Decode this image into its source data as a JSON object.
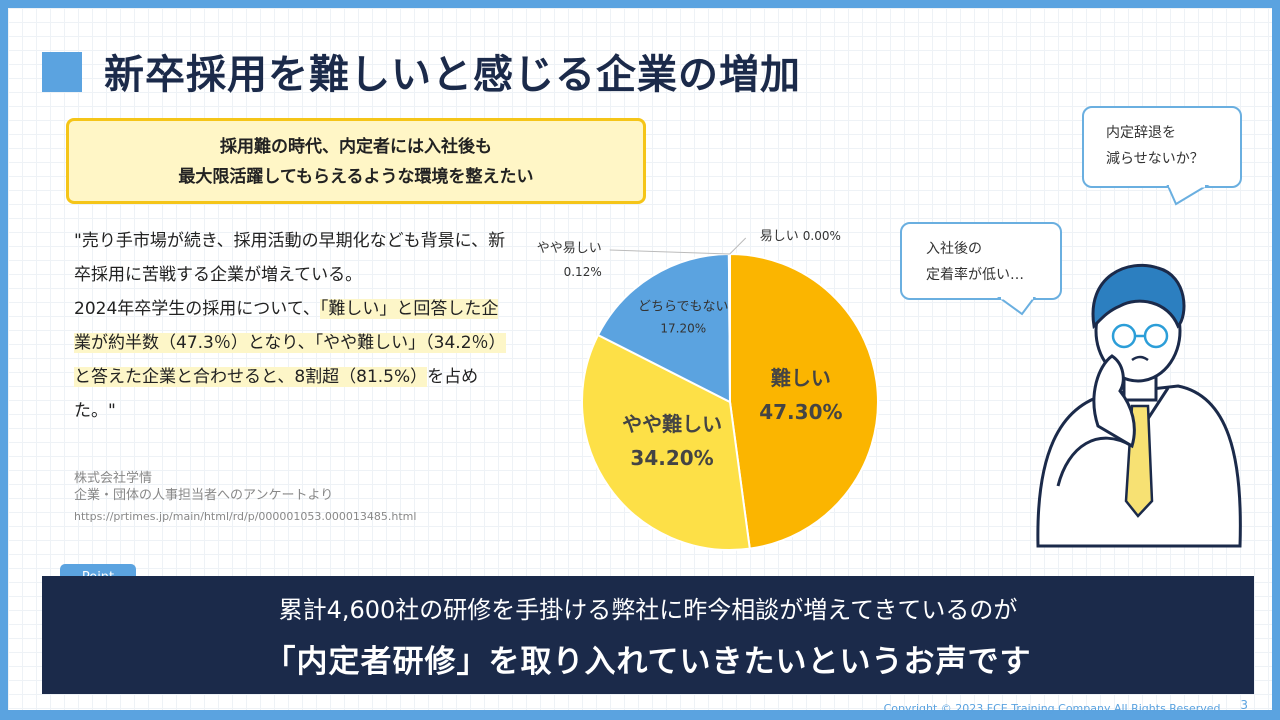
{
  "title": "新卒採用を難しいと感じる企業の増加",
  "callout": {
    "line1": "採用難の時代、内定者には入社後も",
    "line2": "最大限活躍してもらえるような環境を整えたい"
  },
  "quote": {
    "p1": "\"売り手市場が続き、採用活動の早期化なども背景に、新卒採用に苦戦する企業が増えている。",
    "p2_a": "2024年卒学生の採用について、",
    "p2_hl1": "「難しい」",
    "p2_b": "と回答した企業が約半数（47.3％）となり、",
    "p2_hl2": "「やや難しい」（34.2％）と答えた企業と",
    "p2_hl3": "合わせると、8割超（81.5%）",
    "p2_c": "を占めた。\""
  },
  "source": {
    "line1": "株式会社学情",
    "line2": "企業・団体の人事担当者へのアンケートより",
    "url": "https://prtimes.jp/main/html/rd/p/000001053.000013485.html"
  },
  "bubbles": {
    "b1_line1": "内定辞退を",
    "b1_line2": "減らせないか？",
    "b2_line1": "入社後の",
    "b2_line2": "定着率が低い…"
  },
  "point_label": "Point",
  "banner": {
    "line1": "累計4,600社の研修を手掛ける弊社に昨今相談が増えてきているのが",
    "line2": "「内定者研修」を取り入れていきたいというお声です"
  },
  "copyright": "Copyright © 2023 FCE Training Company All Rights Reserved.",
  "page_number": "3",
  "chart_data": {
    "type": "pie",
    "slices": [
      {
        "label": "難しい",
        "value": 47.3,
        "value_label": "47.30%",
        "color": "#fbb500"
      },
      {
        "label": "やや難しい",
        "value": 34.2,
        "value_label": "34.20%",
        "color": "#fde047"
      },
      {
        "label": "どちらでもない",
        "value": 17.2,
        "value_label": "17.20%",
        "color": "#5ba3e0"
      },
      {
        "label": "やや易しい",
        "value": 0.12,
        "value_label": "0.12%",
        "color": "#5ba3e0"
      },
      {
        "label": "易しい",
        "value": 0.0,
        "value_label": "0.00%",
        "color": "#5ba3e0"
      }
    ]
  }
}
